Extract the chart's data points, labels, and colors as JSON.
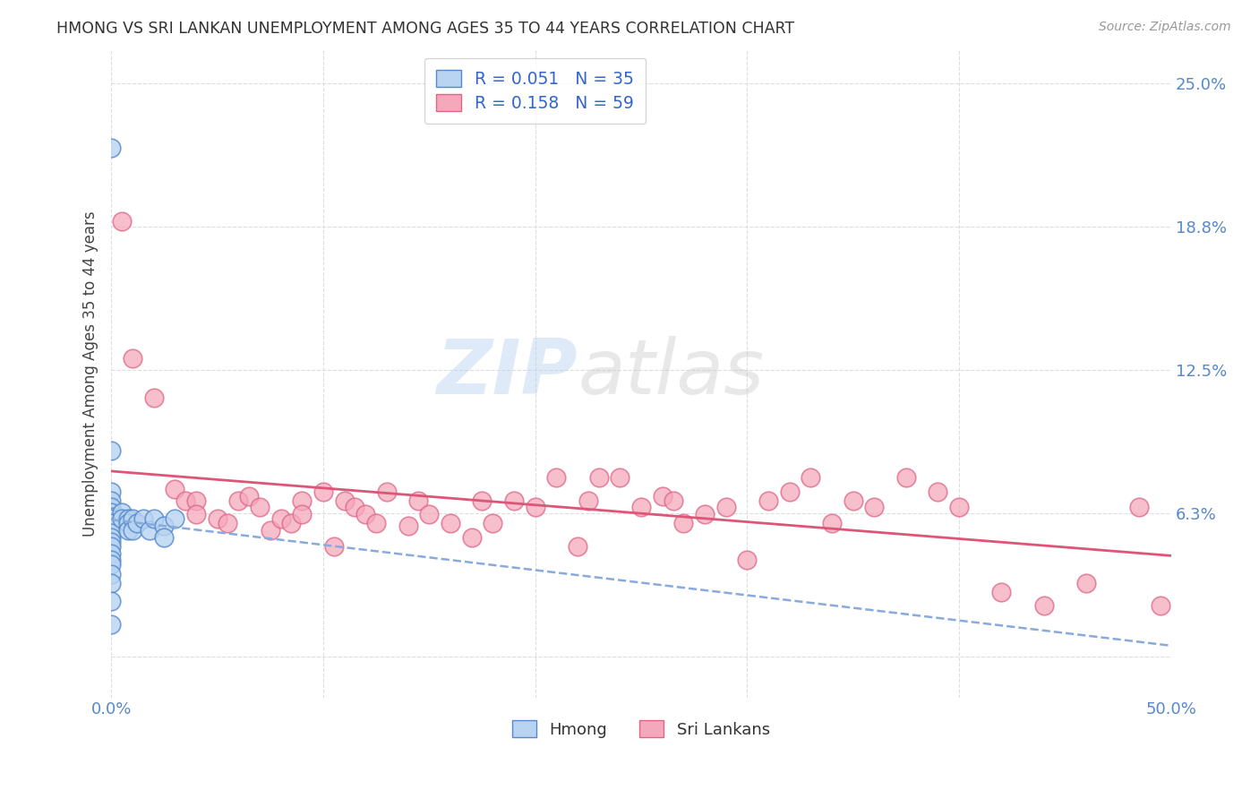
{
  "title": "HMONG VS SRI LANKAN UNEMPLOYMENT AMONG AGES 35 TO 44 YEARS CORRELATION CHART",
  "source": "Source: ZipAtlas.com",
  "ylabel": "Unemployment Among Ages 35 to 44 years",
  "xlim": [
    0.0,
    0.5
  ],
  "ylim": [
    -0.018,
    0.265
  ],
  "background_color": "#ffffff",
  "hmong_color": "#b8d4f0",
  "hmong_edge_color": "#5588cc",
  "srilanka_color": "#f5a8bc",
  "srilanka_edge_color": "#dd6688",
  "hmong_trend_color": "#88aadd",
  "srilanka_trend_color": "#dd5577",
  "hmong_R": 0.051,
  "hmong_N": 35,
  "srilanka_R": 0.158,
  "srilanka_N": 59,
  "hmong_x": [
    0.0,
    0.0,
    0.0,
    0.0,
    0.0,
    0.0,
    0.0,
    0.0,
    0.0,
    0.0,
    0.0,
    0.0,
    0.0,
    0.0,
    0.0,
    0.0,
    0.0,
    0.0,
    0.0,
    0.005,
    0.005,
    0.008,
    0.008,
    0.008,
    0.01,
    0.01,
    0.012,
    0.015,
    0.018,
    0.02,
    0.025,
    0.025,
    0.03,
    0.0,
    0.0
  ],
  "hmong_y": [
    0.222,
    0.09,
    0.072,
    0.068,
    0.065,
    0.063,
    0.061,
    0.06,
    0.058,
    0.056,
    0.054,
    0.052,
    0.05,
    0.048,
    0.045,
    0.042,
    0.04,
    0.036,
    0.032,
    0.063,
    0.06,
    0.06,
    0.058,
    0.055,
    0.06,
    0.055,
    0.058,
    0.06,
    0.055,
    0.06,
    0.057,
    0.052,
    0.06,
    0.024,
    0.014
  ],
  "srilanka_x": [
    0.005,
    0.01,
    0.02,
    0.03,
    0.035,
    0.04,
    0.04,
    0.05,
    0.055,
    0.06,
    0.065,
    0.07,
    0.075,
    0.08,
    0.085,
    0.09,
    0.09,
    0.1,
    0.105,
    0.11,
    0.115,
    0.12,
    0.125,
    0.13,
    0.14,
    0.145,
    0.15,
    0.16,
    0.17,
    0.175,
    0.18,
    0.19,
    0.2,
    0.21,
    0.22,
    0.225,
    0.23,
    0.24,
    0.25,
    0.26,
    0.265,
    0.27,
    0.28,
    0.29,
    0.3,
    0.31,
    0.32,
    0.33,
    0.34,
    0.35,
    0.36,
    0.375,
    0.39,
    0.4,
    0.42,
    0.44,
    0.46,
    0.485,
    0.495
  ],
  "srilanka_y": [
    0.19,
    0.13,
    0.113,
    0.073,
    0.068,
    0.068,
    0.062,
    0.06,
    0.058,
    0.068,
    0.07,
    0.065,
    0.055,
    0.06,
    0.058,
    0.068,
    0.062,
    0.072,
    0.048,
    0.068,
    0.065,
    0.062,
    0.058,
    0.072,
    0.057,
    0.068,
    0.062,
    0.058,
    0.052,
    0.068,
    0.058,
    0.068,
    0.065,
    0.078,
    0.048,
    0.068,
    0.078,
    0.078,
    0.065,
    0.07,
    0.068,
    0.058,
    0.062,
    0.065,
    0.042,
    0.068,
    0.072,
    0.078,
    0.058,
    0.068,
    0.065,
    0.078,
    0.072,
    0.065,
    0.028,
    0.022,
    0.032,
    0.065,
    0.022
  ],
  "ytick_positions": [
    0.0,
    0.0625,
    0.125,
    0.1875,
    0.25
  ],
  "ytick_labels": [
    "",
    "6.3%",
    "12.5%",
    "18.8%",
    "25.0%"
  ],
  "xtick_positions": [
    0.0,
    0.1,
    0.2,
    0.3,
    0.4,
    0.5
  ],
  "xtick_labels": [
    "0.0%",
    "",
    "",
    "",
    "",
    "50.0%"
  ]
}
